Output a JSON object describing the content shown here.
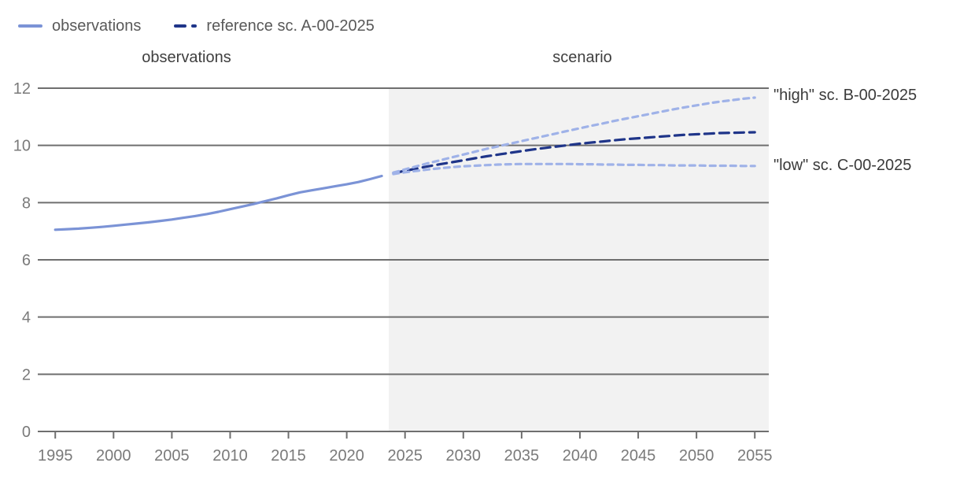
{
  "legend": {
    "items": [
      {
        "label": "observations",
        "swatch": "solid-line-swatch",
        "color": "#7b93d6"
      },
      {
        "label": "reference sc. A-00-2025",
        "swatch": "dashed-line-swatch",
        "color": "#1f3589"
      }
    ]
  },
  "sections": {
    "observations_label": "observations",
    "scenario_label": "scenario"
  },
  "annotations": {
    "high_label": "\"high\" sc. B-00-2025",
    "low_label": "\"low\" sc. C-00-2025"
  },
  "chart_data": {
    "type": "line",
    "title": "",
    "xlabel": "",
    "ylabel": "",
    "xlim": [
      1993.5,
      2056.2
    ],
    "ylim": [
      0,
      12
    ],
    "x_ticks": [
      1995,
      2000,
      2005,
      2010,
      2015,
      2020,
      2025,
      2030,
      2035,
      2040,
      2045,
      2050,
      2055
    ],
    "y_ticks": [
      0,
      2,
      4,
      6,
      8,
      10,
      12
    ],
    "grid": "horizontal",
    "grid_color": "#6f6f6f",
    "tick_label_color": "#7a7a7a",
    "scenario_shading": {
      "from": 2023.6,
      "to": 2056.2,
      "color": "#f2f2f2"
    },
    "series": [
      {
        "name": "observations",
        "style": "solid",
        "color": "#7b93d6",
        "width": 3.2,
        "x": [
          1995,
          1996,
          1997,
          1998,
          1999,
          2000,
          2001,
          2002,
          2003,
          2004,
          2005,
          2006,
          2007,
          2008,
          2009,
          2010,
          2011,
          2012,
          2013,
          2014,
          2015,
          2016,
          2017,
          2018,
          2019,
          2020,
          2021,
          2022,
          2023
        ],
        "values": [
          7.05,
          7.07,
          7.09,
          7.12,
          7.15,
          7.19,
          7.23,
          7.27,
          7.31,
          7.36,
          7.41,
          7.47,
          7.53,
          7.6,
          7.68,
          7.77,
          7.86,
          7.95,
          8.05,
          8.15,
          8.26,
          8.36,
          8.43,
          8.5,
          8.57,
          8.64,
          8.72,
          8.82,
          8.93
        ]
      },
      {
        "name": "reference sc. A-00-2025",
        "style": "dashed",
        "dash": "12,7",
        "color": "#1f3589",
        "width": 3.2,
        "x": [
          2024,
          2025,
          2026,
          2027,
          2028,
          2029,
          2030,
          2031,
          2032,
          2033,
          2034,
          2035,
          2036,
          2037,
          2038,
          2039,
          2040,
          2041,
          2042,
          2043,
          2044,
          2045,
          2046,
          2047,
          2048,
          2049,
          2050,
          2051,
          2052,
          2053,
          2054,
          2055
        ],
        "values": [
          9.03,
          9.11,
          9.19,
          9.27,
          9.34,
          9.41,
          9.48,
          9.55,
          9.62,
          9.68,
          9.74,
          9.8,
          9.86,
          9.91,
          9.96,
          10.01,
          10.06,
          10.1,
          10.14,
          10.18,
          10.22,
          10.25,
          10.28,
          10.31,
          10.34,
          10.37,
          10.39,
          10.41,
          10.43,
          10.44,
          10.45,
          10.46
        ]
      },
      {
        "name": "\"high\" sc. B-00-2025",
        "style": "dashed",
        "dash": "7,6",
        "color": "#9fb2e8",
        "width": 3.2,
        "x": [
          2024,
          2025,
          2026,
          2027,
          2028,
          2029,
          2030,
          2031,
          2032,
          2033,
          2034,
          2035,
          2036,
          2037,
          2038,
          2039,
          2040,
          2041,
          2042,
          2043,
          2044,
          2045,
          2046,
          2047,
          2048,
          2049,
          2050,
          2051,
          2052,
          2053,
          2054,
          2055
        ],
        "values": [
          9.05,
          9.16,
          9.27,
          9.38,
          9.48,
          9.58,
          9.68,
          9.78,
          9.88,
          9.97,
          10.06,
          10.15,
          10.24,
          10.33,
          10.42,
          10.51,
          10.6,
          10.69,
          10.77,
          10.86,
          10.94,
          11.02,
          11.1,
          11.18,
          11.26,
          11.33,
          11.4,
          11.47,
          11.53,
          11.58,
          11.63,
          11.67
        ]
      },
      {
        "name": "\"low\" sc. C-00-2025",
        "style": "dashed",
        "dash": "7,6",
        "color": "#9fb2e8",
        "width": 3.2,
        "x": [
          2024,
          2025,
          2026,
          2027,
          2028,
          2029,
          2030,
          2031,
          2032,
          2033,
          2034,
          2035,
          2036,
          2037,
          2038,
          2039,
          2040,
          2041,
          2042,
          2043,
          2044,
          2045,
          2046,
          2047,
          2048,
          2049,
          2050,
          2051,
          2052,
          2053,
          2054,
          2055
        ],
        "values": [
          9.0,
          9.06,
          9.11,
          9.16,
          9.2,
          9.24,
          9.27,
          9.29,
          9.31,
          9.33,
          9.34,
          9.35,
          9.35,
          9.35,
          9.35,
          9.35,
          9.34,
          9.34,
          9.33,
          9.33,
          9.32,
          9.32,
          9.31,
          9.31,
          9.3,
          9.3,
          9.3,
          9.29,
          9.29,
          9.29,
          9.28,
          9.28
        ]
      }
    ]
  }
}
